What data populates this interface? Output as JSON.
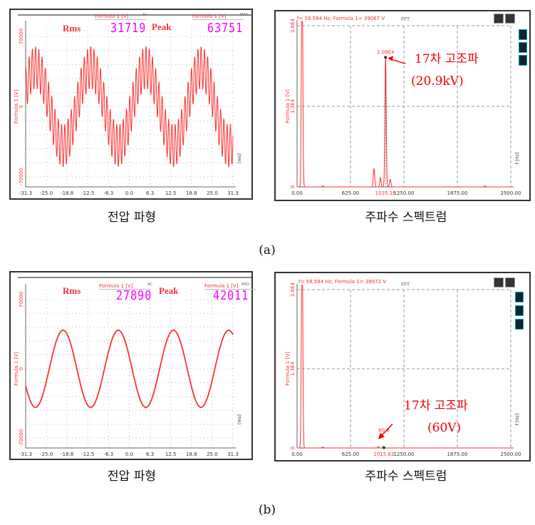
{
  "figure_labels": {
    "a": "(a)",
    "b": "(b)"
  },
  "captions": {
    "voltage": "전압 파형",
    "spectrum": "주파수 스펙트럼"
  },
  "colors": {
    "trace": "#ff3030",
    "readout": "#ff00ff",
    "grid": "#bbbbbb",
    "annotation": "#ee0000"
  },
  "chart_data": [
    {
      "id": "a_wave",
      "type": "line",
      "ylabel": "Formula 1 [V]",
      "xlabel": "[ms]",
      "xlim": [
        -31.3,
        31.3
      ],
      "ylim": [
        -80000,
        80000
      ],
      "grid": true,
      "x_ticks": [
        "-31.3",
        "-25.0",
        "-18.8",
        "-12.5",
        "-6.3",
        "0.0",
        "6.3",
        "12.5",
        "18.8",
        "25.0",
        "31.3"
      ],
      "y_ticks": [
        {
          "value": 70000,
          "label": "70000"
        },
        {
          "value": 0,
          "label": "0"
        },
        {
          "value": -70000,
          "label": "-70000"
        }
      ],
      "series": [
        {
          "fundamental_hz": 60,
          "amplitude": 39067,
          "peak_time_ms": -28.3,
          "harmonic_order": 17,
          "harmonic_amplitude": 20900
        }
      ],
      "readouts": {
        "channel": "Formula 1 [V]",
        "rms_label": "Rms",
        "rms_mode": "AC",
        "rms_value": "31719",
        "peak_label": "Peak",
        "peak_mode": "MAX",
        "peak_value": "63751"
      }
    },
    {
      "id": "a_fft",
      "type": "line",
      "title": "FFT",
      "ylabel": "Formula 1 [V]",
      "xlabel": "f [Hz]",
      "xlim": [
        0,
        2500
      ],
      "ylim": [
        0,
        26000
      ],
      "grid": true,
      "x_ticks": [
        "0.00",
        "625.00",
        "1250.00",
        "1875.00",
        "2500.00"
      ],
      "y_ticks": [
        {
          "value": 0,
          "label": "0"
        },
        {
          "value": 13000,
          "label": "1.3E4"
        },
        {
          "value": 26000,
          "label": "2.6E4"
        }
      ],
      "cursor": "f= 58.594 Hz; Formula 1= 39067 V",
      "peaks": [
        {
          "x": 58.594,
          "y": 39067
        },
        {
          "x": 300,
          "y": 150
        },
        {
          "x": 900,
          "y": 3000
        },
        {
          "x": 975,
          "y": 1500
        },
        {
          "x": 1035.16,
          "y": 20900
        },
        {
          "x": 1090,
          "y": 1200
        },
        {
          "x": 2200,
          "y": 150
        }
      ],
      "marker": {
        "x": 1035.16,
        "y": 20900,
        "x_label": "1035.16",
        "y_label": "2.09E4"
      },
      "annotation": {
        "line1": "17차 고조파",
        "line2": "(20.9kV)"
      }
    },
    {
      "id": "b_wave",
      "type": "line",
      "ylabel": "Formula 1 [V]",
      "xlabel": "[ms]",
      "xlim": [
        -31.3,
        31.3
      ],
      "ylim": [
        -80000,
        80000
      ],
      "grid": true,
      "x_ticks": [
        "-31.3",
        "-25.0",
        "-18.8",
        "-12.5",
        "-6.3",
        "0.0",
        "6.3",
        "12.5",
        "18.8",
        "25.0",
        "31.3"
      ],
      "y_ticks": [
        {
          "value": 70000,
          "label": "70000"
        },
        {
          "value": 0,
          "label": "0"
        },
        {
          "value": -70000,
          "label": "-70000"
        }
      ],
      "series": [
        {
          "fundamental_hz": 60,
          "amplitude": 38972,
          "peak_time_ms": -20.0,
          "harmonic_order": 17,
          "harmonic_amplitude": 60
        }
      ],
      "readouts": {
        "channel": "Formula 1 [V]",
        "rms_label": "Rms",
        "rms_mode": "AC",
        "rms_value": "27890",
        "peak_label": "Peak",
        "peak_mode": "MAX",
        "peak_value": "42011"
      }
    },
    {
      "id": "b_fft",
      "type": "line",
      "title": "FFT",
      "ylabel": "Formula 1 [V]",
      "xlabel": "f [Hz]",
      "xlim": [
        0,
        2500
      ],
      "ylim": [
        0,
        26000
      ],
      "grid": true,
      "x_ticks": [
        "0.00",
        "625.00",
        "1250.00",
        "1875.00",
        "2500.00"
      ],
      "y_ticks": [
        {
          "value": 0,
          "label": "0"
        },
        {
          "value": 13000,
          "label": "1.3E4"
        },
        {
          "value": 26000,
          "label": "2.6E4"
        }
      ],
      "cursor": "f= 58.594 Hz; Formula 1= 38972 V",
      "peaks": [
        {
          "x": 58.594,
          "y": 38972
        },
        {
          "x": 300,
          "y": 150
        },
        {
          "x": 950,
          "y": 200
        },
        {
          "x": 1015.63,
          "y": 60.8
        }
      ],
      "marker": {
        "x": 1015.63,
        "y": 60.8,
        "x_label": "1015.63",
        "y_label": "60.8"
      },
      "annotation": {
        "line1": "17차 고조파",
        "line2": "(60V)"
      }
    }
  ]
}
